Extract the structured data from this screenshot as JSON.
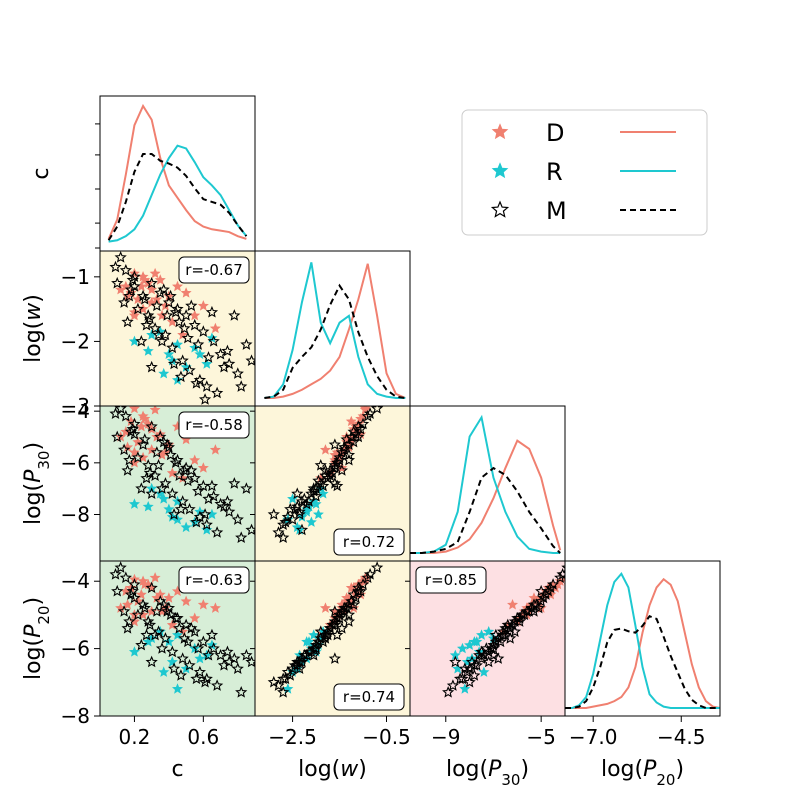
{
  "chart_data": {
    "type": "scatter",
    "title": "",
    "variables": [
      {
        "key": "c",
        "label": "c",
        "range": [
          0.0,
          0.9
        ],
        "ticks": [
          {
            "v": 0.2,
            "t": "0.2"
          },
          {
            "v": 0.6,
            "t": "0.6"
          }
        ]
      },
      {
        "key": "logw",
        "label": "log(w)",
        "range": [
          -3.3,
          0.0
        ],
        "ticks": [
          {
            "v": -2.5,
            "t": "−2.5"
          },
          {
            "v": -0.5,
            "t": "−0.5"
          }
        ],
        "y_range": [
          -3.0,
          -0.6
        ],
        "y_ticks": [
          {
            "v": -1,
            "t": "−1"
          },
          {
            "v": -2,
            "t": "−2"
          },
          {
            "v": -3,
            "t": "−3"
          }
        ]
      },
      {
        "key": "logP30",
        "label": "log(P30)",
        "range": [
          -10.5,
          -4.0
        ],
        "ticks": [
          {
            "v": -9,
            "t": "−9"
          },
          {
            "v": -5,
            "t": "−5"
          }
        ],
        "y_range": [
          -9.8,
          -3.8
        ],
        "y_ticks": [
          {
            "v": -4,
            "t": "−4"
          },
          {
            "v": -6,
            "t": "−6"
          },
          {
            "v": -8,
            "t": "−8"
          }
        ]
      },
      {
        "key": "logP20",
        "label": "log(P20)",
        "range": [
          -7.8,
          -3.4
        ],
        "ticks": [
          {
            "v": -7.0,
            "t": "−7.0"
          },
          {
            "v": -4.5,
            "t": "−4.5"
          }
        ],
        "y_range": [
          -8.0,
          -3.4
        ],
        "y_ticks": [
          {
            "v": -4,
            "t": "−4"
          },
          {
            "v": -6,
            "t": "−6"
          },
          {
            "v": -8,
            "t": "−8"
          }
        ]
      }
    ],
    "correlations": [
      {
        "row": 1,
        "col": 0,
        "text": "r=-0.67",
        "color": "#fdf6da",
        "pos": "top-right"
      },
      {
        "row": 2,
        "col": 0,
        "text": "r=-0.58",
        "color": "#d7eed7",
        "pos": "top-right"
      },
      {
        "row": 2,
        "col": 1,
        "text": "r=0.72",
        "color": "#fdf6da",
        "pos": "bottom-right"
      },
      {
        "row": 3,
        "col": 0,
        "text": "r=-0.63",
        "color": "#d7eed7",
        "pos": "top-right"
      },
      {
        "row": 3,
        "col": 1,
        "text": "r=0.74",
        "color": "#fdf6da",
        "pos": "bottom-right"
      },
      {
        "row": 3,
        "col": 2,
        "text": "r=0.85",
        "color": "#fde0e3",
        "pos": "top-left"
      }
    ],
    "series": [
      {
        "name": "D",
        "color": "#f08070",
        "marker": "filled-star"
      },
      {
        "name": "R",
        "color": "#1ec8d0",
        "marker": "filled-star"
      },
      {
        "name": "M",
        "color": "#000000",
        "marker": "open-star"
      }
    ],
    "kde": {
      "c": {
        "x": [
          0.05,
          0.1,
          0.15,
          0.2,
          0.25,
          0.3,
          0.35,
          0.4,
          0.45,
          0.5,
          0.55,
          0.6,
          0.65,
          0.7,
          0.75,
          0.8,
          0.85
        ],
        "D": [
          0.03,
          0.17,
          0.5,
          0.86,
          1.0,
          0.9,
          0.62,
          0.42,
          0.33,
          0.24,
          0.16,
          0.12,
          0.1,
          0.09,
          0.08,
          0.05,
          0.03
        ],
        "R": [
          0.01,
          0.02,
          0.05,
          0.1,
          0.2,
          0.35,
          0.5,
          0.62,
          0.71,
          0.69,
          0.59,
          0.48,
          0.42,
          0.35,
          0.24,
          0.13,
          0.05
        ],
        "M": [
          0.02,
          0.12,
          0.3,
          0.52,
          0.65,
          0.65,
          0.6,
          0.58,
          0.55,
          0.49,
          0.4,
          0.32,
          0.3,
          0.28,
          0.22,
          0.13,
          0.05
        ]
      },
      "logw": {
        "x": [
          -3.1,
          -2.9,
          -2.7,
          -2.5,
          -2.3,
          -2.1,
          -1.9,
          -1.7,
          -1.5,
          -1.3,
          -1.1,
          -0.9,
          -0.7,
          -0.5,
          -0.3,
          -0.1
        ],
        "D": [
          0.0,
          0.0,
          0.01,
          0.03,
          0.06,
          0.1,
          0.14,
          0.2,
          0.3,
          0.5,
          0.72,
          0.98,
          0.6,
          0.18,
          0.03,
          0.0
        ],
        "R": [
          0.0,
          0.01,
          0.1,
          0.35,
          0.7,
          0.99,
          0.55,
          0.4,
          0.55,
          0.6,
          0.3,
          0.1,
          0.03,
          0.01,
          0.0,
          0.0
        ],
        "M": [
          0.0,
          0.01,
          0.06,
          0.22,
          0.3,
          0.37,
          0.5,
          0.68,
          0.82,
          0.72,
          0.48,
          0.3,
          0.16,
          0.06,
          0.01,
          0.0
        ]
      },
      "logP30": {
        "x": [
          -10.5,
          -10.0,
          -9.5,
          -9.0,
          -8.5,
          -8.0,
          -7.5,
          -7.0,
          -6.5,
          -6.0,
          -5.5,
          -5.0,
          -4.5,
          -4.2
        ],
        "D": [
          0.0,
          0.0,
          0.0,
          0.01,
          0.04,
          0.1,
          0.22,
          0.4,
          0.62,
          0.82,
          0.76,
          0.55,
          0.2,
          0.02
        ],
        "R": [
          0.0,
          0.0,
          0.01,
          0.06,
          0.3,
          0.85,
          0.99,
          0.55,
          0.3,
          0.12,
          0.03,
          0.01,
          0.0,
          0.0
        ],
        "M": [
          0.0,
          0.0,
          0.01,
          0.03,
          0.08,
          0.3,
          0.55,
          0.62,
          0.57,
          0.45,
          0.3,
          0.18,
          0.05,
          0.0
        ]
      },
      "logP20": {
        "x": [
          -7.8,
          -7.6,
          -7.4,
          -7.2,
          -7.0,
          -6.8,
          -6.6,
          -6.4,
          -6.2,
          -6.0,
          -5.8,
          -5.6,
          -5.4,
          -5.2,
          -5.0,
          -4.8,
          -4.6,
          -4.4,
          -4.2,
          -4.0,
          -3.8,
          -3.6,
          -3.4
        ],
        "D": [
          0.0,
          0.0,
          0.0,
          0.0,
          0.01,
          0.02,
          0.03,
          0.05,
          0.08,
          0.15,
          0.3,
          0.55,
          0.75,
          0.88,
          0.94,
          0.9,
          0.78,
          0.55,
          0.32,
          0.15,
          0.05,
          0.01,
          0.0
        ],
        "R": [
          0.0,
          0.0,
          0.02,
          0.08,
          0.25,
          0.5,
          0.75,
          0.92,
          0.98,
          0.88,
          0.6,
          0.3,
          0.1,
          0.04,
          0.01,
          0.0,
          0.0,
          0.0,
          0.0,
          0.0,
          0.0,
          0.0,
          0.0
        ],
        "M": [
          0.0,
          0.0,
          0.01,
          0.05,
          0.15,
          0.3,
          0.48,
          0.57,
          0.58,
          0.56,
          0.55,
          0.6,
          0.67,
          0.65,
          0.52,
          0.38,
          0.26,
          0.14,
          0.06,
          0.02,
          0.0,
          0.0,
          0.0
        ]
      }
    },
    "points": {
      "D": [
        [
          0.2,
          -0.95,
          -3.9,
          -3.95
        ],
        [
          0.25,
          -1.0,
          -4.2,
          -4.0
        ],
        [
          0.15,
          -1.15,
          -4.8,
          -4.3
        ],
        [
          0.32,
          -0.95,
          -3.95,
          -3.9
        ],
        [
          0.18,
          -1.25,
          -4.4,
          -4.2
        ],
        [
          0.28,
          -1.1,
          -4.5,
          -4.1
        ],
        [
          0.22,
          -1.35,
          -5.2,
          -4.6
        ],
        [
          0.35,
          -1.05,
          -4.9,
          -4.4
        ],
        [
          0.12,
          -1.2,
          -5.0,
          -4.8
        ],
        [
          0.3,
          -1.4,
          -5.5,
          -4.9
        ],
        [
          0.4,
          -1.3,
          -5.3,
          -4.5
        ],
        [
          0.25,
          -1.5,
          -5.8,
          -5.0
        ],
        [
          0.45,
          -1.15,
          -4.6,
          -4.3
        ],
        [
          0.2,
          -1.6,
          -6.0,
          -5.2
        ],
        [
          0.38,
          -1.45,
          -5.6,
          -4.8
        ],
        [
          0.5,
          -1.25,
          -5.1,
          -4.6
        ],
        [
          0.16,
          -1.3,
          -5.4,
          -4.7
        ],
        [
          0.6,
          -1.45,
          -6.2,
          -4.7
        ],
        [
          0.55,
          -1.6,
          -5.9,
          -5.1
        ],
        [
          0.3,
          -1.2,
          -4.7,
          -4.2
        ],
        [
          0.42,
          -1.7,
          -6.4,
          -5.3
        ],
        [
          0.26,
          -1.05,
          -4.3,
          -4.1
        ],
        [
          0.2,
          -1.55,
          -5.6,
          -5.0
        ],
        [
          0.33,
          -1.35,
          -5.0,
          -4.5
        ],
        [
          0.36,
          -1.6,
          -5.7,
          -4.9
        ],
        [
          0.67,
          -1.8,
          -5.5,
          -4.8
        ],
        [
          0.48,
          -1.9,
          -6.6,
          -5.5
        ],
        [
          0.24,
          -1.15,
          -4.6,
          -4.4
        ]
      ],
      "R": [
        [
          0.4,
          -2.2,
          -7.8,
          -5.8
        ],
        [
          0.45,
          -2.05,
          -7.5,
          -5.6
        ],
        [
          0.42,
          -2.3,
          -8.1,
          -6.4
        ],
        [
          0.3,
          -1.9,
          -7.0,
          -5.7
        ],
        [
          0.62,
          -2.35,
          -8.6,
          -6.2
        ],
        [
          0.55,
          -2.1,
          -8.3,
          -6.0
        ],
        [
          0.37,
          -2.5,
          -7.4,
          -6.7
        ],
        [
          0.65,
          -1.95,
          -8.0,
          -5.9
        ],
        [
          0.2,
          -2.0,
          -7.6,
          -6.1
        ],
        [
          0.5,
          -2.4,
          -8.5,
          -6.6
        ],
        [
          0.28,
          -2.15,
          -7.7,
          -5.8
        ],
        [
          0.45,
          -2.6,
          -8.2,
          -7.2
        ],
        [
          0.35,
          -1.85,
          -7.2,
          -5.5
        ],
        [
          0.58,
          -2.2,
          -7.9,
          -6.3
        ]
      ],
      "M": [
        [
          0.12,
          -0.7,
          -3.9,
          -3.6
        ],
        [
          0.15,
          -0.9,
          -4.2,
          -3.9
        ],
        [
          0.2,
          -1.0,
          -4.5,
          -4.1
        ],
        [
          0.1,
          -1.1,
          -5.0,
          -4.3
        ],
        [
          0.18,
          -1.2,
          -4.8,
          -4.4
        ],
        [
          0.25,
          -1.3,
          -5.3,
          -4.7
        ],
        [
          0.3,
          -1.1,
          -4.6,
          -4.2
        ],
        [
          0.14,
          -1.4,
          -5.5,
          -4.9
        ],
        [
          0.22,
          -1.5,
          -5.8,
          -5.0
        ],
        [
          0.35,
          -1.25,
          -5.0,
          -4.6
        ],
        [
          0.28,
          -1.6,
          -6.1,
          -5.2
        ],
        [
          0.4,
          -1.4,
          -5.4,
          -4.8
        ],
        [
          0.16,
          -1.7,
          -6.3,
          -5.4
        ],
        [
          0.32,
          -1.8,
          -6.5,
          -5.6
        ],
        [
          0.45,
          -1.5,
          -5.9,
          -5.1
        ],
        [
          0.38,
          -1.9,
          -6.8,
          -5.7
        ],
        [
          0.5,
          -1.6,
          -6.2,
          -5.3
        ],
        [
          0.24,
          -2.0,
          -7.0,
          -5.9
        ],
        [
          0.55,
          -1.75,
          -6.6,
          -5.5
        ],
        [
          0.42,
          -2.1,
          -7.2,
          -6.1
        ],
        [
          0.6,
          -1.85,
          -6.9,
          -5.8
        ],
        [
          0.48,
          -2.3,
          -7.5,
          -6.3
        ],
        [
          0.66,
          -2.0,
          -7.3,
          -6.0
        ],
        [
          0.52,
          -2.45,
          -7.8,
          -6.5
        ],
        [
          0.7,
          -2.2,
          -7.6,
          -6.2
        ],
        [
          0.58,
          -2.6,
          -8.1,
          -6.7
        ],
        [
          0.75,
          -2.35,
          -7.9,
          -6.4
        ],
        [
          0.62,
          -2.7,
          -8.4,
          -6.9
        ],
        [
          0.8,
          -2.5,
          -8.2,
          -6.6
        ],
        [
          0.68,
          -2.8,
          -8.7,
          -7.1
        ],
        [
          0.2,
          -1.15,
          -4.9,
          -4.5
        ],
        [
          0.26,
          -1.35,
          -5.1,
          -4.8
        ],
        [
          0.33,
          -1.45,
          -5.6,
          -4.9
        ],
        [
          0.37,
          -1.2,
          -5.2,
          -4.7
        ],
        [
          0.44,
          -1.55,
          -6.0,
          -5.1
        ],
        [
          0.29,
          -1.65,
          -6.4,
          -5.3
        ],
        [
          0.51,
          -1.95,
          -6.7,
          -5.8
        ],
        [
          0.46,
          -1.7,
          -6.5,
          -5.4
        ],
        [
          0.57,
          -2.05,
          -7.1,
          -6.0
        ],
        [
          0.63,
          -2.25,
          -7.4,
          -6.2
        ],
        [
          0.72,
          -2.4,
          -7.7,
          -6.5
        ],
        [
          0.78,
          -1.6,
          -6.8,
          -6.3
        ],
        [
          0.85,
          -2.05,
          -7.0,
          -6.2
        ],
        [
          0.82,
          -2.7,
          -8.9,
          -7.3
        ],
        [
          0.09,
          -0.85,
          -4.1,
          -3.8
        ],
        [
          0.3,
          -2.4,
          -7.2,
          -6.4
        ],
        [
          0.19,
          -1.05,
          -4.7,
          -4.3
        ],
        [
          0.41,
          -1.3,
          -5.7,
          -5.0
        ],
        [
          0.53,
          -1.45,
          -6.3,
          -5.4
        ],
        [
          0.65,
          -1.55,
          -6.9,
          -5.6
        ],
        [
          0.74,
          -2.15,
          -7.5,
          -6.1
        ],
        [
          0.36,
          -2.0,
          -7.0,
          -6.0
        ],
        [
          0.47,
          -2.55,
          -7.8,
          -6.8
        ],
        [
          0.56,
          -2.65,
          -8.3,
          -6.9
        ],
        [
          0.27,
          -1.75,
          -6.6,
          -5.6
        ],
        [
          0.43,
          -2.35,
          -8.0,
          -6.6
        ],
        [
          0.61,
          -2.9,
          -8.0,
          -7.0
        ],
        [
          0.88,
          -2.3,
          -8.6,
          -6.4
        ],
        [
          0.34,
          -1.9,
          -6.1,
          -5.5
        ],
        [
          0.17,
          -1.3,
          -5.9,
          -5.2
        ],
        [
          0.49,
          -1.8,
          -6.3,
          -5.7
        ],
        [
          0.39,
          -1.6,
          -5.3,
          -4.9
        ]
      ]
    },
    "legend": {
      "position": "top-right",
      "entries": [
        {
          "label": "D",
          "color": "#f08070"
        },
        {
          "label": "R",
          "color": "#1ec8d0"
        },
        {
          "label": "M",
          "color": "#000000"
        }
      ]
    }
  }
}
